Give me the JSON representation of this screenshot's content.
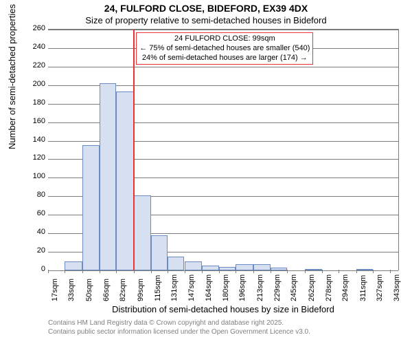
{
  "title_main": "24, FULFORD CLOSE, BIDEFORD, EX39 4DX",
  "title_sub": "Size of property relative to semi-detached houses in Bideford",
  "ylabel": "Number of semi-detached properties",
  "xlabel": "Distribution of semi-detached houses by size in Bideford",
  "footer1": "Contains HM Land Registry data © Crown copyright and database right 2025.",
  "footer2": "Contains public sector information licensed under the Open Government Licence v3.0.",
  "annotation": {
    "line1": "24 FULFORD CLOSE: 99sqm",
    "line2": "← 75% of semi-detached houses are smaller (540)",
    "line3": "24% of semi-detached houses are larger (174) →"
  },
  "chart": {
    "type": "histogram",
    "background_color": "#ffffff",
    "grid_color": "#7b7b7b",
    "bar_fill": "#d6e0f0",
    "bar_stroke": "#6a8bc4",
    "reference_line_color": "#ee3030",
    "reference_x": 99,
    "x_min": 17,
    "x_max": 351,
    "y_min": 0,
    "y_max": 260,
    "y_ticks": [
      0,
      20,
      40,
      60,
      80,
      100,
      120,
      140,
      160,
      180,
      200,
      220,
      240,
      260
    ],
    "x_tick_labels": [
      "17sqm",
      "33sqm",
      "50sqm",
      "66sqm",
      "82sqm",
      "99sqm",
      "115sqm",
      "131sqm",
      "147sqm",
      "164sqm",
      "180sqm",
      "196sqm",
      "213sqm",
      "229sqm",
      "245sqm",
      "262sqm",
      "278sqm",
      "294sqm",
      "311sqm",
      "327sqm",
      "343sqm"
    ],
    "x_tick_positions": [
      17,
      33,
      50,
      66,
      82,
      99,
      115,
      131,
      147,
      164,
      180,
      196,
      213,
      229,
      245,
      262,
      278,
      294,
      311,
      327,
      343
    ],
    "bars": [
      {
        "x0": 33,
        "x1": 50,
        "y": 10
      },
      {
        "x0": 50,
        "x1": 66,
        "y": 135
      },
      {
        "x0": 66,
        "x1": 82,
        "y": 202
      },
      {
        "x0": 82,
        "x1": 99,
        "y": 193
      },
      {
        "x0": 99,
        "x1": 115,
        "y": 81
      },
      {
        "x0": 115,
        "x1": 131,
        "y": 38
      },
      {
        "x0": 131,
        "x1": 147,
        "y": 15
      },
      {
        "x0": 147,
        "x1": 164,
        "y": 10
      },
      {
        "x0": 164,
        "x1": 180,
        "y": 5
      },
      {
        "x0": 180,
        "x1": 196,
        "y": 4
      },
      {
        "x0": 196,
        "x1": 213,
        "y": 7
      },
      {
        "x0": 213,
        "x1": 229,
        "y": 7
      },
      {
        "x0": 229,
        "x1": 245,
        "y": 3
      },
      {
        "x0": 262,
        "x1": 278,
        "y": 1
      },
      {
        "x0": 311,
        "x1": 327,
        "y": 1
      }
    ],
    "title_fontsize": 14,
    "sub_fontsize": 13,
    "label_fontsize": 13,
    "tick_fontsize": 11,
    "annot_fontsize": 11,
    "footer_fontsize": 10,
    "footer_color": "#808080",
    "annot_border_color": "#ee3030"
  }
}
